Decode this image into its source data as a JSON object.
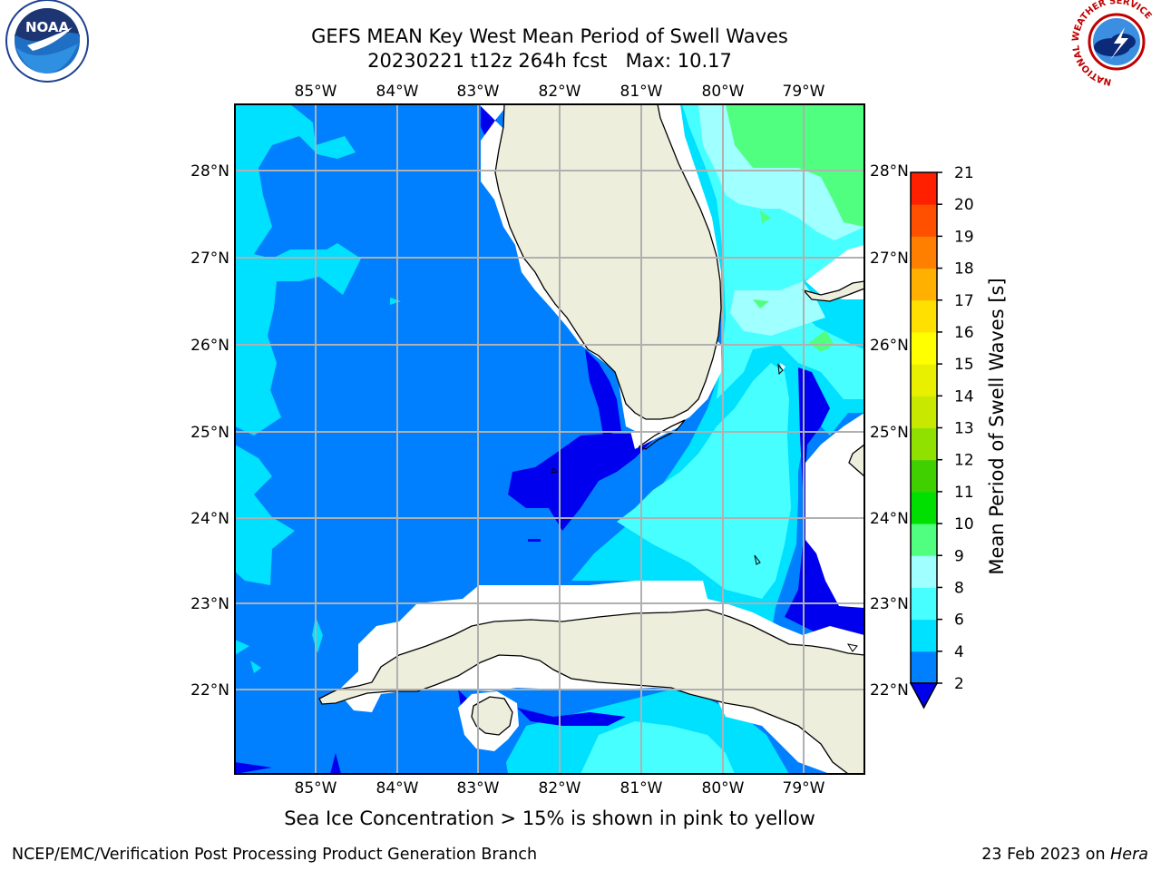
{
  "title": {
    "line1": "GEFS MEAN Key West Mean Period of Swell Waves",
    "line2": "20230221 t12z 264h fcst   Max: 10.17"
  },
  "caption": "Sea Ice Concentration > 15% is shown in pink to yellow",
  "footer": {
    "left": "NCEP/EMC/Verification Post Processing Product Generation Branch",
    "date": "23 Feb 2023 on ",
    "host": "Hera"
  },
  "logos": {
    "noaa": {
      "icon": "noaa-logo-icon",
      "text": "NOAA"
    },
    "nws": {
      "icon": "nws-logo-icon",
      "text": "NATIONAL WEATHER SERVICE"
    }
  },
  "map": {
    "lon_labels": [
      "85°W",
      "84°W",
      "83°W",
      "82°W",
      "81°W",
      "80°W",
      "79°W"
    ],
    "lat_labels": [
      "28°N",
      "27°N",
      "26°N",
      "25°N",
      "24°N",
      "23°N",
      "22°N"
    ],
    "land_color": "#eeeedd",
    "no_data_color": "#ffffff",
    "grid_color": "#b0b0b0"
  },
  "colorbar": {
    "label": "Mean Period of Swell Waves [s]",
    "ticks": [
      "2",
      "4",
      "6",
      "8",
      "9",
      "10",
      "11",
      "12",
      "13",
      "14",
      "15",
      "16",
      "17",
      "18",
      "19",
      "20",
      "21"
    ],
    "colors": [
      "#0000ee",
      "#0080ff",
      "#00e0ff",
      "#48ffff",
      "#a0ffff",
      "#50ff80",
      "#00e000",
      "#40d000",
      "#90e000",
      "#c8e800",
      "#e8f000",
      "#ffff00",
      "#ffe000",
      "#ffb000",
      "#ff8000",
      "#ff5000",
      "#ff2000",
      "#ff0000"
    ]
  }
}
